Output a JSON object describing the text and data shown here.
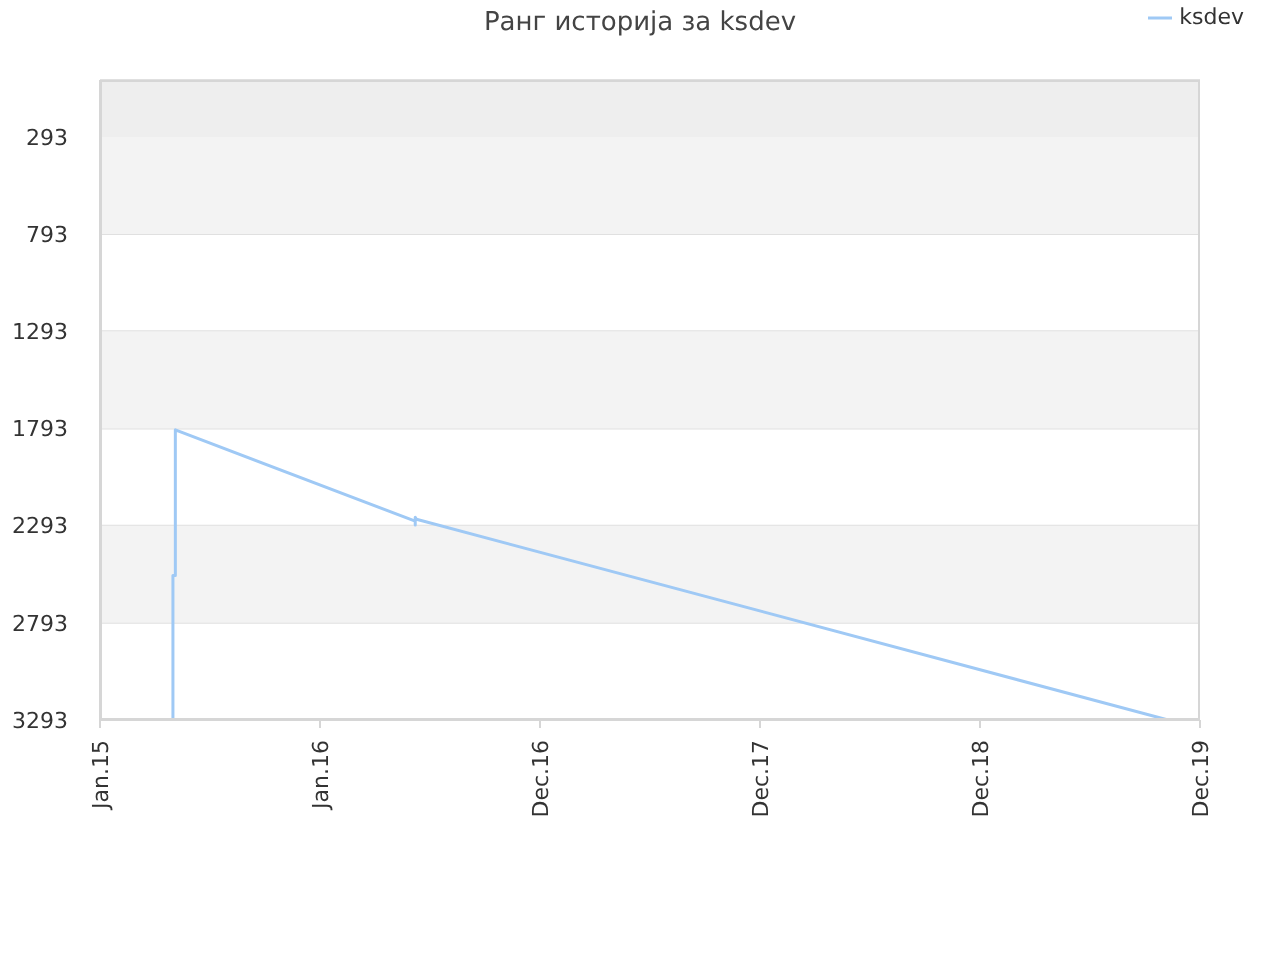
{
  "chart_data": {
    "type": "line",
    "title": "Ранг историја за ksdev",
    "x": [
      "2015-05-02",
      "2015-05-02",
      "2015-05-06",
      "2015-05-06",
      "2016-06-07",
      "2016-06-07",
      "2016-06-07",
      "2016-06-09",
      "2019-11-08"
    ],
    "series": [
      {
        "name": "ksdev",
        "color": "#9fc9f5",
        "values": [
          3293,
          2550,
          2550,
          1800,
          2270,
          2290,
          2250,
          2260,
          3293
        ]
      }
    ],
    "xlim": [
      "2015-01-01",
      "2019-12-31"
    ],
    "xticks": [
      {
        "value": "2015-01-01",
        "label": "Jan.15"
      },
      {
        "value": "2016-01-01",
        "label": "Jan.16"
      },
      {
        "value": "2016-12-31",
        "label": "Dec.16"
      },
      {
        "value": "2017-12-31",
        "label": "Dec.17"
      },
      {
        "value": "2018-12-31",
        "label": "Dec.18"
      },
      {
        "value": "2019-12-31",
        "label": "Dec.19"
      }
    ],
    "ylim": [
      3293,
      0
    ],
    "yticks": [
      293,
      793,
      1293,
      1793,
      2293,
      2793,
      3293
    ],
    "grid": "y",
    "legend": "top right",
    "line_style": "solid",
    "bands": [
      {
        "axis": "y",
        "from": 0,
        "to": 293,
        "color": "#eeeeee"
      },
      {
        "axis": "y",
        "from": 293,
        "to": 793,
        "color": "#f3f3f3"
      },
      {
        "axis": "y",
        "from": 1293,
        "to": 1793,
        "color": "#f3f3f3"
      },
      {
        "axis": "y",
        "from": 2293,
        "to": 2793,
        "color": "#f3f3f3"
      }
    ]
  }
}
